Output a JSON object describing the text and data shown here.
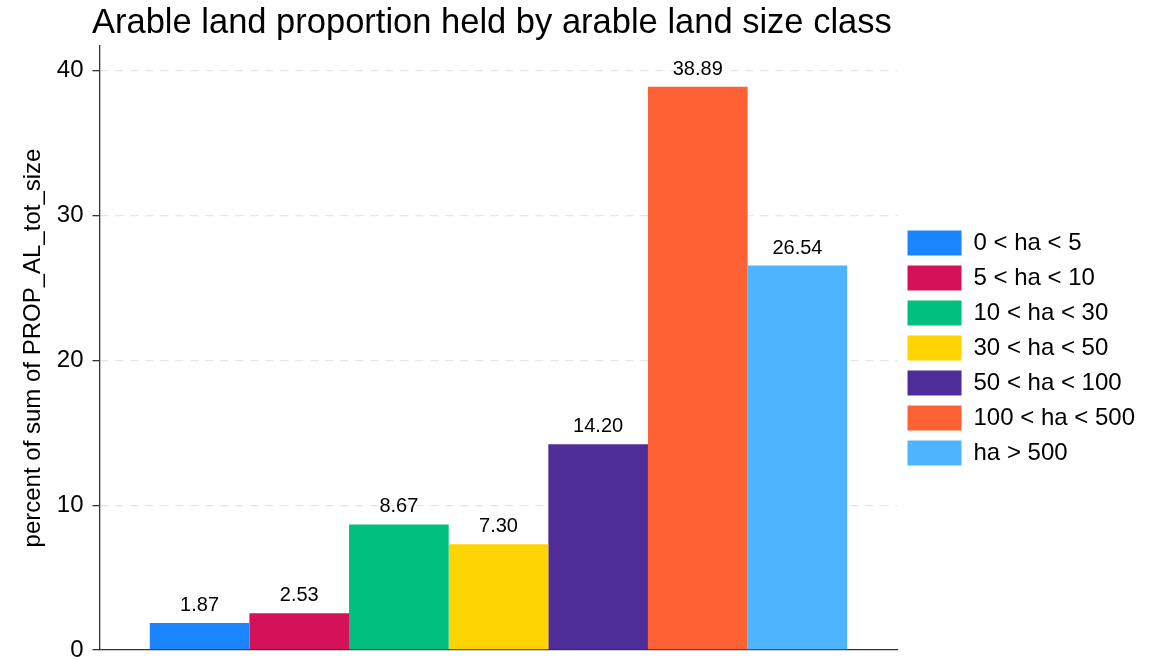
{
  "chart_data": {
    "type": "bar",
    "title": "Arable land proportion held by arable land size class",
    "ylabel": "percent of sum of PROP_AL_tot_size",
    "categories": [
      null
    ],
    "series": [
      {
        "name": "0 < ha < 5",
        "color": "#1a85ff",
        "values": [
          1.87
        ],
        "value_labels": [
          "1.87"
        ]
      },
      {
        "name": "5 < ha < 10",
        "color": "#d41159",
        "values": [
          2.53
        ],
        "value_labels": [
          "2.53"
        ]
      },
      {
        "name": "10 < ha < 30",
        "color": "#00bf7f",
        "values": [
          8.67
        ],
        "value_labels": [
          "8.67"
        ]
      },
      {
        "name": "30 < ha < 50",
        "color": "#ffd400",
        "values": [
          7.3
        ],
        "value_labels": [
          "7.30"
        ]
      },
      {
        "name": "50 < ha < 100",
        "color": "#4f2d98",
        "values": [
          14.2
        ],
        "value_labels": [
          "14.20"
        ]
      },
      {
        "name": "100 < ha < 500",
        "color": "#fe6234",
        "values": [
          38.89
        ],
        "value_labels": [
          "38.89"
        ]
      },
      {
        "name": "ha > 500",
        "color": "#4fb4fe",
        "values": [
          26.54
        ],
        "value_labels": [
          "26.54"
        ]
      }
    ],
    "ylim": [
      0,
      41.7
    ],
    "yticks": [
      0,
      10,
      20,
      30,
      40
    ],
    "grid": "y",
    "legend": "right"
  }
}
